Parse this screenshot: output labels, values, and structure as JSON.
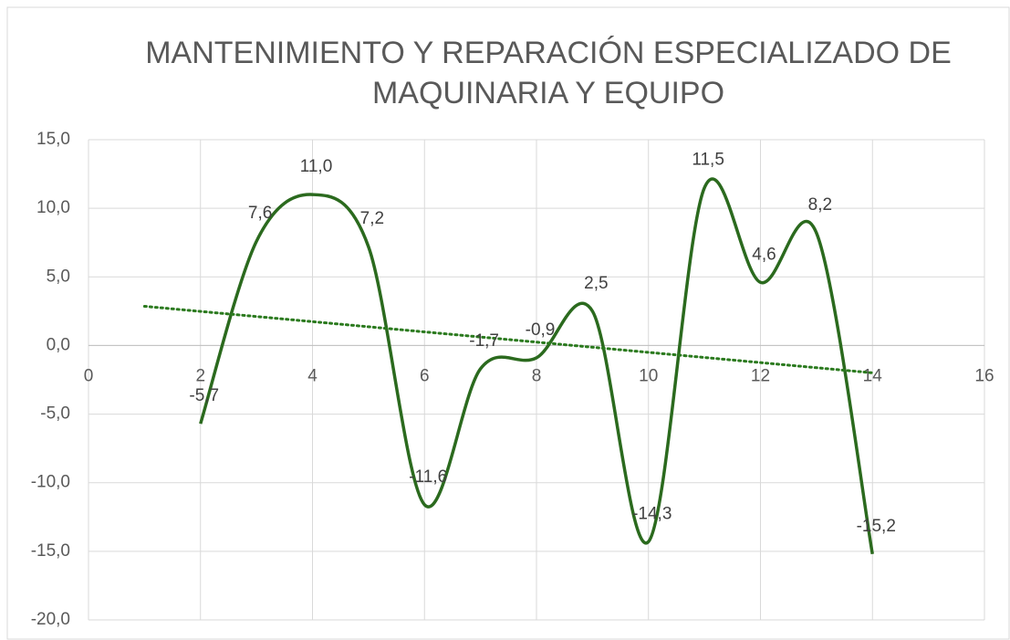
{
  "chart_data": {
    "type": "line",
    "title": [
      "MANTENIMIENTO Y REPARACIÓN ESPECIALIZADO DE",
      "MAQUINARIA Y EQUIPO"
    ],
    "smooth": true,
    "x": [
      2,
      3,
      4,
      5,
      6,
      7,
      8,
      9,
      10,
      11,
      12,
      13,
      14
    ],
    "series": [
      {
        "color": "#2b6a1e",
        "values": [
          -5.7,
          7.6,
          11.0,
          7.2,
          -11.6,
          -1.7,
          -0.9,
          2.5,
          -14.3,
          11.5,
          4.6,
          8.2,
          -15.2
        ],
        "value_labels": [
          "-5,7",
          "7,6",
          "11,0",
          "7,2",
          "-11,6",
          "-1,7",
          "-0,9",
          "2,5",
          "-14,3",
          "11,5",
          "4,6",
          "8,2",
          "-15,2"
        ]
      }
    ],
    "trendline": {
      "type": "linear",
      "forecast_backward": 1,
      "color": "#2b7a1e"
    },
    "xlim": [
      0,
      16
    ],
    "xticks": [
      0,
      2,
      4,
      6,
      8,
      10,
      12,
      14,
      16
    ],
    "ylim": [
      -20,
      15
    ],
    "yticks": [
      {
        "value": -20,
        "label": "-20,0"
      },
      {
        "value": -15,
        "label": "-15,0"
      },
      {
        "value": -10,
        "label": "-10,0"
      },
      {
        "value": -5,
        "label": "-5,0"
      },
      {
        "value": 0,
        "label": "0,0"
      },
      {
        "value": 5,
        "label": "5,0"
      },
      {
        "value": 10,
        "label": "10,0"
      },
      {
        "value": 15,
        "label": "15,0"
      }
    ],
    "grid": true
  }
}
